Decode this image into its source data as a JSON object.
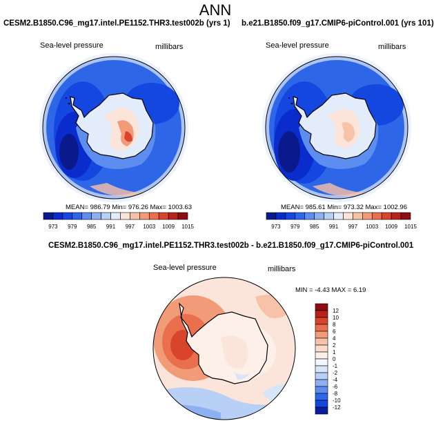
{
  "page": {
    "title": "ANN"
  },
  "panels": [
    {
      "case": "CESM2.B1850.C96_mg17.intel.PE1152.THR3.test002b (yrs 1)",
      "variable": "Sea-level pressure",
      "units": "millibars",
      "stats": "MEAN= 986.79  Min= 976.26  Max= 1003.63"
    },
    {
      "case": "b.e21.B1850.f09_g17.CMIP6-piControl.001 (yrs 101)",
      "variable": "Sea-level pressure",
      "units": "millibars",
      "stats": "MEAN= 985.61  Min= 973.32  Max= 1002.96"
    }
  ],
  "diff_panel": {
    "title": "CESM2.B1850.C96_mg17.intel.PE1152.THR3.test002b - b.e21.B1850.f09_g17.CMIP6-piControl.001",
    "variable": "Sea-level pressure",
    "units": "millibars",
    "stats": "MIN =  -4.43 MAX =   6.19"
  },
  "chart_data": [
    {
      "type": "heatmap",
      "projection": "south-polar-stereographic",
      "title": "CESM2.B1850.C96_mg17.intel.PE1152.THR3.test002b (yrs 1)",
      "variable": "Sea-level pressure",
      "units": "millibars",
      "mean": 986.79,
      "min": 976.26,
      "max": 1003.63,
      "colorbar": {
        "levels": [
          973,
          979,
          985,
          991,
          997,
          1003,
          1009,
          1015
        ],
        "colors": [
          "#0a1a8c",
          "#0b2ccc",
          "#1446e0",
          "#2e66e8",
          "#5c8def",
          "#8cb0f2",
          "#b8cff6",
          "#e2ecfb",
          "#fbe5da",
          "#f7c2a8",
          "#f29b78",
          "#ea6f4c",
          "#d9452c",
          "#b8221b",
          "#8c0d12"
        ]
      }
    },
    {
      "type": "heatmap",
      "projection": "south-polar-stereographic",
      "title": "b.e21.B1850.f09_g17.CMIP6-piControl.001 (yrs 101)",
      "variable": "Sea-level pressure",
      "units": "millibars",
      "mean": 985.61,
      "min": 973.32,
      "max": 1002.96,
      "colorbar": {
        "levels": [
          973,
          979,
          985,
          991,
          997,
          1003,
          1009,
          1015
        ],
        "colors": [
          "#0a1a8c",
          "#0b2ccc",
          "#1446e0",
          "#2e66e8",
          "#5c8def",
          "#8cb0f2",
          "#b8cff6",
          "#e2ecfb",
          "#fbe5da",
          "#f7c2a8",
          "#f29b78",
          "#ea6f4c",
          "#d9452c",
          "#b8221b",
          "#8c0d12"
        ]
      }
    },
    {
      "type": "heatmap",
      "projection": "south-polar-stereographic",
      "title": "CESM2.B1850.C96_mg17.intel.PE1152.THR3.test002b - b.e21.B1850.f09_g17.CMIP6-piControl.001",
      "variable": "Sea-level pressure",
      "units": "millibars",
      "min": -4.43,
      "max": 6.19,
      "colorbar": {
        "orientation": "vertical",
        "levels": [
          12,
          10,
          8,
          6,
          4,
          2,
          1,
          0,
          -1,
          -2,
          -4,
          -6,
          -8,
          -10,
          -12
        ],
        "colors": [
          "#8c0d12",
          "#b8221b",
          "#d9452c",
          "#ea6f4c",
          "#f29b78",
          "#f7c2a8",
          "#fbdccb",
          "#fdf0e8",
          "#f2f6fd",
          "#d7e5fa",
          "#b8cff6",
          "#8cb0f2",
          "#5c8def",
          "#2e66e8",
          "#1446e0",
          "#0b1f9c"
        ]
      }
    }
  ]
}
